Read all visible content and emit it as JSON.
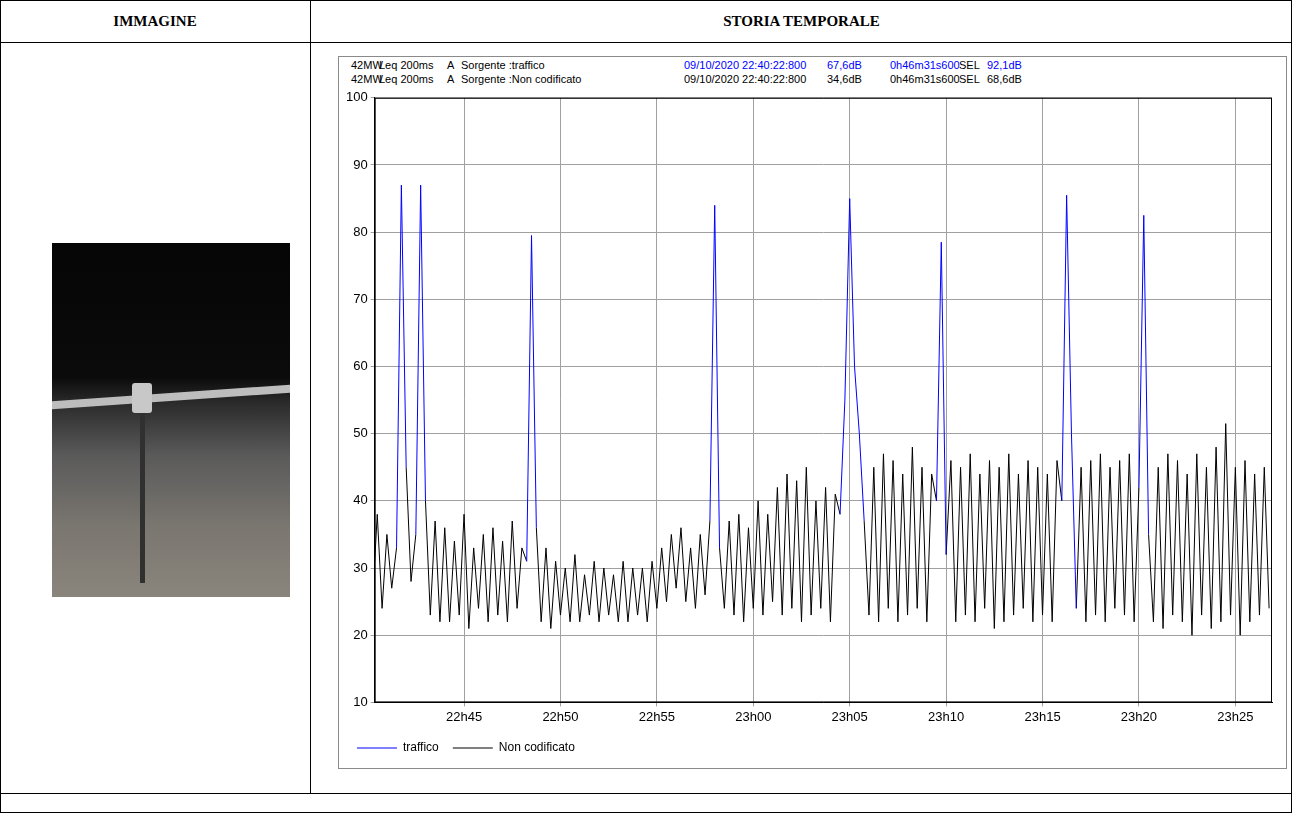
{
  "header": {
    "columns": [
      "IMMAGINE",
      "STORIA TEMPORALE"
    ]
  },
  "chart_data": {
    "type": "line",
    "info_rows": [
      [
        "42MW",
        "Leq 200ms",
        "A",
        "Sorgente :traffico",
        "09/10/2020 22:40:22:800",
        "67,6dB",
        "0h46m31s600",
        "SEL",
        "92,1dB"
      ],
      [
        "42MW",
        "Leq 200ms",
        "A",
        "Sorgente :Non codificato",
        "09/10/2020 22:40:22:800",
        "34,6dB",
        "0h46m31s600",
        "SEL",
        "68,6dB"
      ]
    ],
    "x": [
      "22:40:22",
      "22:40:30",
      "22:40:45",
      "22:41:00",
      "22:41:15",
      "22:41:30",
      "22:41:45",
      "22:42:00",
      "22:42:15",
      "22:42:30",
      "22:42:45",
      "22:43:00",
      "22:43:15",
      "22:43:30",
      "22:43:45",
      "22:44:00",
      "22:44:15",
      "22:44:30",
      "22:44:45",
      "22:45:00",
      "22:45:15",
      "22:45:30",
      "22:45:45",
      "22:46:00",
      "22:46:15",
      "22:46:30",
      "22:46:45",
      "22:47:00",
      "22:47:15",
      "22:47:30",
      "22:47:45",
      "22:48:00",
      "22:48:15",
      "22:48:30",
      "22:48:45",
      "22:49:00",
      "22:49:15",
      "22:49:30",
      "22:49:45",
      "22:50:00",
      "22:50:15",
      "22:50:30",
      "22:50:45",
      "22:51:00",
      "22:51:15",
      "22:51:30",
      "22:51:45",
      "22:52:00",
      "22:52:15",
      "22:52:30",
      "22:52:45",
      "22:53:00",
      "22:53:15",
      "22:53:30",
      "22:53:45",
      "22:54:00",
      "22:54:15",
      "22:54:30",
      "22:54:45",
      "22:55:00",
      "22:55:15",
      "22:55:30",
      "22:55:45",
      "22:56:00",
      "22:56:15",
      "22:56:30",
      "22:56:45",
      "22:57:00",
      "22:57:15",
      "22:57:30",
      "22:57:45",
      "22:58:00",
      "22:58:15",
      "22:58:30",
      "22:58:45",
      "22:59:00",
      "22:59:15",
      "22:59:30",
      "22:59:45",
      "23:00:00",
      "23:00:15",
      "23:00:30",
      "23:00:45",
      "23:01:00",
      "23:01:15",
      "23:01:30",
      "23:01:45",
      "23:02:00",
      "23:02:15",
      "23:02:30",
      "23:02:45",
      "23:03:00",
      "23:03:15",
      "23:03:30",
      "23:03:45",
      "23:04:00",
      "23:04:15",
      "23:04:30",
      "23:04:45",
      "23:05:00",
      "23:05:15",
      "23:05:30",
      "23:05:45",
      "23:06:00",
      "23:06:15",
      "23:06:30",
      "23:06:45",
      "23:07:00",
      "23:07:15",
      "23:07:30",
      "23:07:45",
      "23:08:00",
      "23:08:15",
      "23:08:30",
      "23:08:45",
      "23:09:00",
      "23:09:15",
      "23:09:30",
      "23:09:45",
      "23:10:00",
      "23:10:15",
      "23:10:30",
      "23:10:45",
      "23:11:00",
      "23:11:15",
      "23:11:30",
      "23:11:45",
      "23:12:00",
      "23:12:15",
      "23:12:30",
      "23:12:45",
      "23:13:00",
      "23:13:15",
      "23:13:30",
      "23:13:45",
      "23:14:00",
      "23:14:15",
      "23:14:30",
      "23:14:45",
      "23:15:00",
      "23:15:15",
      "23:15:30",
      "23:15:45",
      "23:16:00",
      "23:16:15",
      "23:16:30",
      "23:16:45",
      "23:17:00",
      "23:17:15",
      "23:17:30",
      "23:17:45",
      "23:18:00",
      "23:18:15",
      "23:18:30",
      "23:18:45",
      "23:19:00",
      "23:19:15",
      "23:19:30",
      "23:19:45",
      "23:20:00",
      "23:20:15",
      "23:20:30",
      "23:20:45",
      "23:21:00",
      "23:21:15",
      "23:21:30",
      "23:21:45",
      "23:22:00",
      "23:22:15",
      "23:22:30",
      "23:22:45",
      "23:23:00",
      "23:23:15",
      "23:23:30",
      "23:23:45",
      "23:24:00",
      "23:24:15",
      "23:24:30",
      "23:24:45",
      "23:25:00",
      "23:25:15",
      "23:25:30",
      "23:25:45",
      "23:26:00",
      "23:26:15",
      "23:26:30",
      "23:26:45"
    ],
    "xlim": [
      "22:40:22",
      "23:26:54"
    ],
    "xticks": [
      {
        "value": "22:45:00",
        "label": "22h45"
      },
      {
        "value": "22:50:00",
        "label": "22h50"
      },
      {
        "value": "22:55:00",
        "label": "22h55"
      },
      {
        "value": "23:00:00",
        "label": "23h00"
      },
      {
        "value": "23:05:00",
        "label": "23h05"
      },
      {
        "value": "23:10:00",
        "label": "23h10"
      },
      {
        "value": "23:15:00",
        "label": "23h15"
      },
      {
        "value": "23:20:00",
        "label": "23h20"
      },
      {
        "value": "23:25:00",
        "label": "23h25"
      }
    ],
    "ylim": [
      10,
      100
    ],
    "yticks": [
      10,
      20,
      30,
      40,
      50,
      60,
      70,
      80,
      90,
      100
    ],
    "grid": true,
    "legend": "bottom",
    "series": [
      {
        "name": "traffico",
        "color": "#0000ff",
        "values": [
          null,
          null,
          null,
          null,
          null,
          33,
          87,
          45,
          null,
          35,
          87,
          40,
          null,
          null,
          null,
          null,
          null,
          null,
          null,
          null,
          null,
          null,
          null,
          null,
          null,
          null,
          null,
          null,
          null,
          null,
          null,
          null,
          31,
          79.5,
          36,
          null,
          null,
          null,
          null,
          null,
          null,
          null,
          null,
          null,
          null,
          null,
          null,
          null,
          null,
          null,
          null,
          null,
          null,
          null,
          null,
          null,
          null,
          null,
          null,
          null,
          null,
          null,
          null,
          null,
          null,
          null,
          null,
          null,
          null,
          null,
          37,
          84,
          33,
          null,
          null,
          null,
          null,
          null,
          null,
          null,
          null,
          null,
          null,
          null,
          null,
          null,
          null,
          null,
          null,
          null,
          null,
          null,
          null,
          null,
          null,
          null,
          null,
          38,
          55,
          85,
          60,
          50,
          37,
          null,
          null,
          null,
          null,
          null,
          null,
          null,
          null,
          null,
          null,
          null,
          null,
          null,
          null,
          40,
          78.5,
          32,
          null,
          null,
          null,
          null,
          null,
          null,
          null,
          null,
          null,
          null,
          null,
          null,
          null,
          null,
          null,
          null,
          null,
          null,
          null,
          null,
          null,
          null,
          null,
          40,
          85.5,
          50,
          24,
          null,
          null,
          null,
          null,
          null,
          null,
          null,
          null,
          null,
          null,
          null,
          null,
          42,
          82.5,
          35,
          null,
          null,
          null,
          null,
          null,
          null,
          null,
          null,
          null,
          null,
          null,
          null,
          null,
          null,
          null,
          null,
          null,
          null,
          null,
          null,
          null,
          null,
          null,
          null,
          null
        ]
      },
      {
        "name": "Non codificato",
        "color": "#000000",
        "values": [
          31,
          38,
          24,
          35,
          27,
          33,
          null,
          45,
          28,
          35,
          null,
          40,
          23,
          37,
          22,
          36,
          22,
          34,
          23,
          38,
          21,
          33,
          24,
          35,
          22,
          36,
          23,
          34,
          22,
          37,
          24,
          33,
          31,
          null,
          36,
          22,
          33,
          21,
          31,
          23,
          30,
          22,
          32,
          22,
          29,
          23,
          31,
          22,
          30,
          23,
          29,
          22,
          31,
          22,
          30,
          23,
          30,
          22,
          31,
          24,
          33,
          25,
          35,
          27,
          36,
          25,
          33,
          24,
          35,
          26,
          37,
          null,
          33,
          24,
          37,
          23,
          38,
          22,
          36,
          24,
          40,
          23,
          38,
          25,
          42,
          23,
          44,
          24,
          43,
          22,
          45,
          23,
          40,
          24,
          42,
          22,
          41,
          38,
          null,
          null,
          null,
          null,
          37,
          23,
          45,
          22,
          47,
          24,
          46,
          22,
          44,
          23,
          48,
          24,
          45,
          22,
          44,
          40,
          null,
          32,
          46,
          22,
          45,
          23,
          47,
          22,
          44,
          24,
          46,
          21,
          45,
          22,
          47,
          23,
          44,
          24,
          46,
          22,
          45,
          23,
          44,
          22,
          46,
          40,
          null,
          null,
          24,
          45,
          22,
          46,
          23,
          47,
          22,
          45,
          24,
          46,
          23,
          47,
          22,
          42,
          null,
          35,
          22,
          45,
          21,
          47,
          23,
          46,
          22,
          44,
          20,
          47,
          23,
          45,
          21,
          48,
          22,
          51.5,
          23,
          45,
          20,
          46,
          22,
          44,
          23,
          45,
          24
        ]
      }
    ]
  }
}
